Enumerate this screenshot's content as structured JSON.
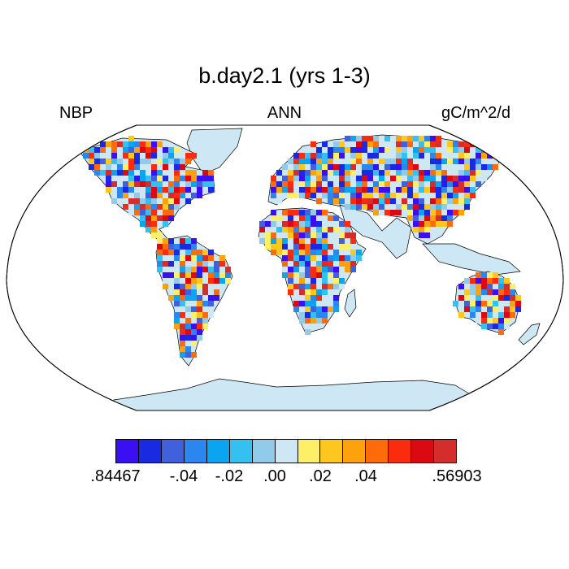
{
  "title": "b.day2.1 (yrs 1-3)",
  "left_label": "NBP",
  "center_label": "ANN",
  "right_label": "gC/m^2/d",
  "colorbar": {
    "colors": [
      "#3a0ff2",
      "#1a2ae0",
      "#4160de",
      "#2b86f0",
      "#0ba4f0",
      "#35c0f2",
      "#92cbea",
      "#cde7f5",
      "#fdf067",
      "#fec720",
      "#fda20c",
      "#fd6b0a",
      "#fb2b0d",
      "#db0a12",
      "#d42d2b"
    ],
    "labels": [
      ".84467",
      "-.04",
      "-.02",
      ".00",
      ".02",
      ".04",
      ".56903"
    ]
  },
  "map": {
    "projection": "Robinson",
    "land_ice_color": "#cde7f5",
    "continents": [
      "North America",
      "Greenland",
      "South America",
      "Europe",
      "Asia",
      "Africa",
      "Australia",
      "Antarctica"
    ]
  }
}
